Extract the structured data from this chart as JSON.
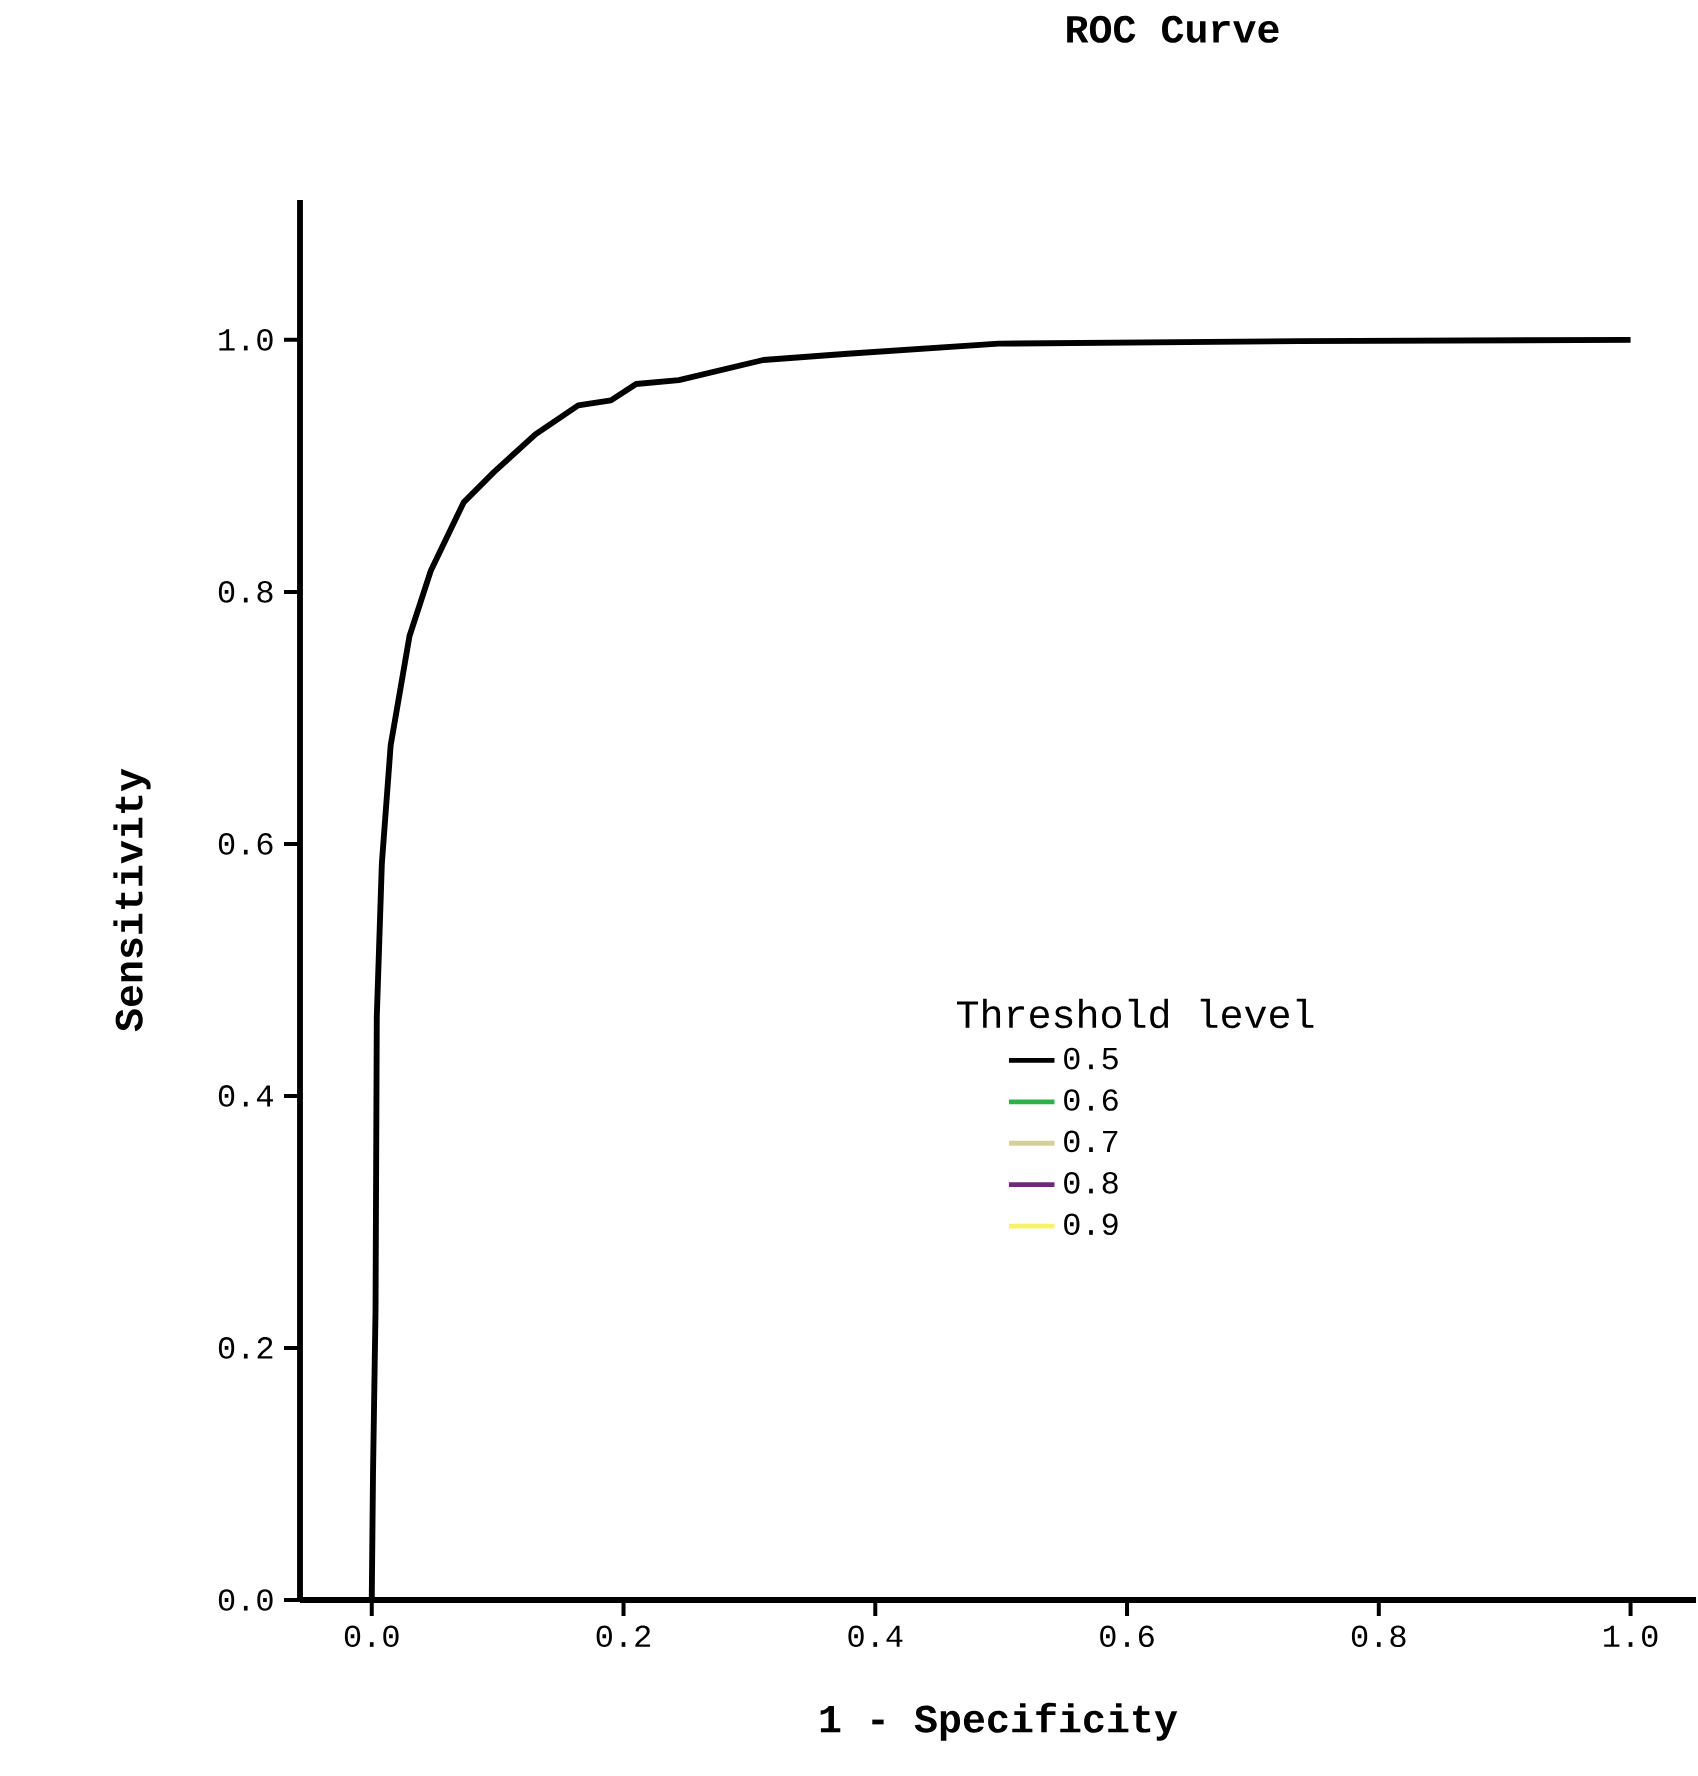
{
  "chart_data": {
    "type": "line",
    "title": "ROC Curve",
    "xlabel": "1 - Specificity",
    "ylabel": "Sensitivity",
    "legend_title": "Threshold level",
    "legend": "center right",
    "grid": false,
    "marker": "none",
    "line_style": "solid",
    "xlim": [
      -0.057,
      1.052
    ],
    "ylim": [
      0,
      1.111
    ],
    "xticks": [
      {
        "value": 0,
        "label": "0.0"
      },
      {
        "value": 0.2,
        "label": "0.2"
      },
      {
        "value": 0.4,
        "label": "0.4"
      },
      {
        "value": 0.6,
        "label": "0.6"
      },
      {
        "value": 0.8,
        "label": "0.8"
      },
      {
        "value": 1,
        "label": "1.0"
      }
    ],
    "yticks": [
      {
        "value": 0,
        "label": "0.0"
      },
      {
        "value": 0.2,
        "label": "0.2"
      },
      {
        "value": 0.4,
        "label": "0.4"
      },
      {
        "value": 0.6,
        "label": "0.6"
      },
      {
        "value": 0.8,
        "label": "0.8"
      },
      {
        "value": 1,
        "label": "1.0"
      }
    ],
    "x": [
      0,
      0.001,
      0.003,
      0.004,
      0.008,
      0.015,
      0.03,
      0.047,
      0.073,
      0.097,
      0.13,
      0.164,
      0.19,
      0.21,
      0.244,
      0.311,
      0.378,
      0.498,
      0.737,
      1.0
    ],
    "series": [
      {
        "name": "0.5",
        "color": "#000000",
        "values": [
          0,
          0.1,
          0.23,
          0.463,
          0.584,
          0.678,
          0.765,
          0.817,
          0.871,
          0.895,
          0.925,
          0.948,
          0.952,
          0.965,
          0.968,
          0.984,
          0.989,
          0.997,
          0.999,
          1.0
        ]
      },
      {
        "name": "0.6",
        "color": "#2bb34a",
        "values": [
          null,
          null,
          null,
          null,
          null,
          null,
          null,
          null,
          null,
          null,
          null,
          null,
          null,
          null,
          null,
          null,
          null,
          null,
          null,
          null
        ]
      },
      {
        "name": "0.7",
        "color": "#d6cf9c",
        "values": [
          null,
          null,
          null,
          null,
          null,
          null,
          null,
          null,
          null,
          null,
          null,
          null,
          null,
          null,
          null,
          null,
          null,
          null,
          null,
          null
        ]
      },
      {
        "name": "0.8",
        "color": "#74267f",
        "values": [
          null,
          null,
          null,
          null,
          null,
          null,
          null,
          null,
          null,
          null,
          null,
          null,
          null,
          null,
          null,
          null,
          null,
          null,
          null,
          null
        ]
      },
      {
        "name": "0.9",
        "color": "#f7f26e",
        "values": [
          null,
          null,
          null,
          null,
          null,
          null,
          null,
          null,
          null,
          null,
          null,
          null,
          null,
          null,
          null,
          null,
          null,
          null,
          null,
          null
        ]
      }
    ]
  }
}
